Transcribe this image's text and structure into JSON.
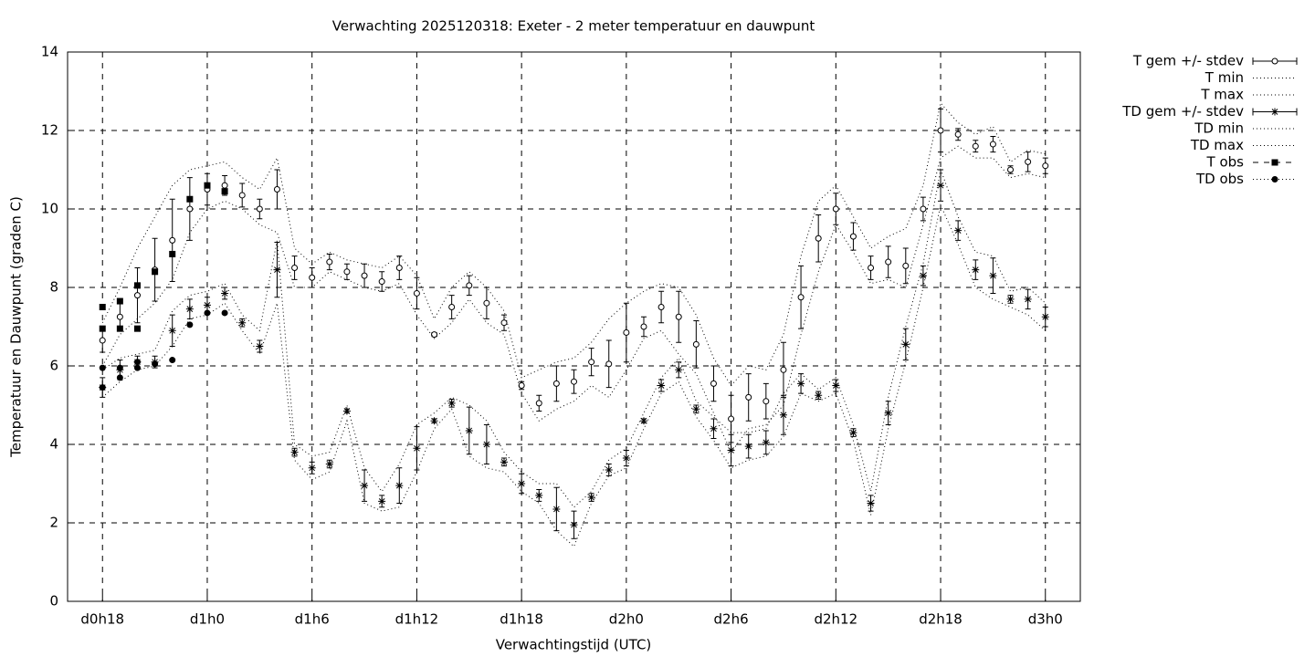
{
  "chart_data": {
    "type": "errorbar",
    "title": "Verwachting 2025120318: Exeter - 2 meter temperatuur en dauwpunt",
    "xlabel": "Verwachtingstijd (UTC)",
    "ylabel": "Temperatuur en Dauwpunt (graden C)",
    "xlim": [
      16,
      74
    ],
    "ylim": [
      0,
      14
    ],
    "xticks": [
      {
        "value": 18,
        "label": "d0h18"
      },
      {
        "value": 24,
        "label": "d1h0"
      },
      {
        "value": 30,
        "label": "d1h6"
      },
      {
        "value": 36,
        "label": "d1h12"
      },
      {
        "value": 42,
        "label": "d1h18"
      },
      {
        "value": 48,
        "label": "d2h0"
      },
      {
        "value": 54,
        "label": "d2h6"
      },
      {
        "value": 60,
        "label": "d2h12"
      },
      {
        "value": 66,
        "label": "d2h18"
      },
      {
        "value": 72,
        "label": "d3h0"
      }
    ],
    "yticks": [
      0,
      2,
      4,
      6,
      8,
      10,
      12,
      14
    ],
    "grid": true,
    "legend": "outside-right",
    "color": "#000000",
    "x": [
      18,
      19,
      20,
      21,
      22,
      23,
      24,
      25,
      26,
      27,
      28,
      29,
      30,
      31,
      32,
      33,
      34,
      35,
      36,
      37,
      38,
      39,
      40,
      41,
      42,
      43,
      44,
      45,
      46,
      47,
      48,
      49,
      50,
      51,
      52,
      53,
      54,
      55,
      56,
      57,
      58,
      59,
      60,
      61,
      62,
      63,
      64,
      65,
      66,
      67,
      68,
      69,
      70,
      71,
      72
    ],
    "series": [
      {
        "name": "T gem +/- stdev",
        "style": "errorbar",
        "marker": "circle",
        "values": [
          6.65,
          7.25,
          7.8,
          8.45,
          9.2,
          10.0,
          10.5,
          10.6,
          10.35,
          10.0,
          10.5,
          8.5,
          8.25,
          8.65,
          8.4,
          8.3,
          8.15,
          8.5,
          7.85,
          6.8,
          7.5,
          8.05,
          7.6,
          7.1,
          5.5,
          5.05,
          5.55,
          5.6,
          6.1,
          6.05,
          6.85,
          7.0,
          7.5,
          7.25,
          6.55,
          5.55,
          4.65,
          5.2,
          5.1,
          5.9,
          7.75,
          9.25,
          10.0,
          9.3,
          8.5,
          8.65,
          8.55,
          10.0,
          12.0,
          11.9,
          11.6,
          11.65,
          11.0,
          11.2,
          11.1
        ],
        "errors": [
          0.3,
          0.35,
          0.7,
          0.8,
          1.05,
          0.8,
          0.4,
          0.25,
          0.3,
          0.25,
          0.5,
          0.3,
          0.25,
          0.2,
          0.2,
          0.3,
          0.25,
          0.3,
          0.4,
          0.05,
          0.3,
          0.25,
          0.4,
          0.2,
          0.1,
          0.2,
          0.45,
          0.3,
          0.35,
          0.6,
          0.75,
          0.25,
          0.4,
          0.65,
          0.6,
          0.45,
          0.6,
          0.6,
          0.45,
          0.7,
          0.8,
          0.6,
          0.4,
          0.35,
          0.3,
          0.4,
          0.45,
          0.3,
          0.55,
          0.15,
          0.15,
          0.2,
          0.1,
          0.25,
          0.2
        ]
      },
      {
        "name": "T min",
        "style": "dotted",
        "values": [
          6.0,
          6.8,
          7.2,
          7.6,
          8.2,
          9.4,
          10.0,
          10.2,
          10.0,
          9.6,
          9.4,
          8.0,
          8.0,
          8.4,
          8.2,
          8.0,
          7.9,
          8.1,
          7.3,
          6.7,
          7.1,
          7.7,
          7.1,
          6.8,
          5.3,
          4.6,
          4.9,
          5.1,
          5.5,
          5.2,
          5.9,
          6.7,
          6.9,
          6.3,
          5.8,
          4.8,
          3.8,
          4.4,
          4.5,
          5.0,
          6.8,
          8.4,
          9.6,
          8.9,
          8.1,
          8.2,
          8.0,
          9.6,
          11.3,
          11.6,
          11.3,
          11.3,
          10.8,
          10.9,
          10.8
        ]
      },
      {
        "name": "T max",
        "style": "dotted",
        "values": [
          7.1,
          8.0,
          9.0,
          9.8,
          10.6,
          11.0,
          11.1,
          11.2,
          10.8,
          10.5,
          11.3,
          9.0,
          8.6,
          8.9,
          8.7,
          8.6,
          8.5,
          8.8,
          8.3,
          7.2,
          8.0,
          8.4,
          8.0,
          7.4,
          5.7,
          5.9,
          6.1,
          6.2,
          6.6,
          7.2,
          7.6,
          7.9,
          8.1,
          8.0,
          7.3,
          6.2,
          5.5,
          6.0,
          5.9,
          6.8,
          8.8,
          10.2,
          10.6,
          9.8,
          9.0,
          9.3,
          9.5,
          10.6,
          12.7,
          12.2,
          11.9,
          12.1,
          11.2,
          11.5,
          11.4
        ]
      },
      {
        "name": "TD gem +/- stdev",
        "style": "errorbar",
        "marker": "star",
        "values": [
          5.45,
          5.9,
          6.1,
          6.1,
          6.9,
          7.45,
          7.55,
          7.85,
          7.1,
          6.5,
          8.45,
          3.8,
          3.4,
          3.5,
          4.85,
          2.95,
          2.55,
          2.95,
          3.9,
          4.6,
          5.05,
          4.35,
          4.0,
          3.55,
          3.0,
          2.7,
          2.35,
          1.95,
          2.65,
          3.35,
          3.65,
          4.6,
          5.5,
          5.9,
          4.9,
          4.4,
          3.85,
          3.95,
          4.05,
          4.75,
          5.55,
          5.25,
          5.5,
          4.3,
          2.5,
          4.8,
          6.55,
          8.3,
          10.6,
          9.45,
          8.45,
          8.3,
          7.7,
          7.7,
          7.25
        ],
        "errors": [
          0.25,
          0.25,
          0.15,
          0.15,
          0.4,
          0.25,
          0.2,
          0.15,
          0.1,
          0.15,
          0.7,
          0.1,
          0.15,
          0.1,
          0.05,
          0.4,
          0.15,
          0.45,
          0.55,
          0.05,
          0.1,
          0.6,
          0.5,
          0.1,
          0.25,
          0.15,
          0.55,
          0.35,
          0.1,
          0.15,
          0.2,
          0.05,
          0.15,
          0.2,
          0.1,
          0.25,
          0.4,
          0.3,
          0.3,
          0.5,
          0.25,
          0.1,
          0.15,
          0.1,
          0.2,
          0.3,
          0.4,
          0.25,
          0.4,
          0.25,
          0.25,
          0.45,
          0.1,
          0.25,
          0.25
        ]
      },
      {
        "name": "TD min",
        "style": "dotted",
        "values": [
          5.2,
          5.6,
          5.9,
          6.0,
          6.5,
          7.2,
          7.3,
          7.6,
          6.9,
          6.3,
          7.6,
          3.6,
          3.1,
          3.3,
          4.6,
          2.5,
          2.3,
          2.4,
          3.3,
          4.4,
          4.9,
          3.7,
          3.4,
          3.3,
          2.8,
          2.5,
          1.8,
          1.4,
          2.5,
          3.2,
          3.4,
          4.4,
          5.3,
          5.6,
          4.7,
          4.1,
          3.4,
          3.6,
          3.7,
          4.2,
          5.3,
          5.1,
          5.3,
          4.1,
          2.2,
          4.4,
          6.1,
          8.0,
          10.1,
          9.1,
          8.0,
          7.7,
          7.5,
          7.3,
          6.9
        ]
      },
      {
        "name": "TD max",
        "style": "dotted",
        "values": [
          5.9,
          6.2,
          6.3,
          6.4,
          7.4,
          7.8,
          7.9,
          8.1,
          7.3,
          6.9,
          9.2,
          4.0,
          3.7,
          3.8,
          5.0,
          3.4,
          2.8,
          3.5,
          4.5,
          4.8,
          5.2,
          5.0,
          4.6,
          3.8,
          3.3,
          3.0,
          3.0,
          2.4,
          2.8,
          3.6,
          3.9,
          4.8,
          5.7,
          6.2,
          5.1,
          4.7,
          4.3,
          4.3,
          4.4,
          5.3,
          5.8,
          5.4,
          5.7,
          4.5,
          2.8,
          5.2,
          7.0,
          8.6,
          11.0,
          9.8,
          8.9,
          8.8,
          7.9,
          8.0,
          7.6
        ]
      },
      {
        "name": "T obs",
        "style": "points",
        "marker": "square",
        "x": [
          18,
          18,
          19,
          19,
          20,
          20,
          21,
          22,
          23,
          24,
          25
        ],
        "values": [
          7.5,
          6.95,
          7.65,
          6.95,
          8.05,
          6.95,
          8.4,
          8.85,
          10.25,
          10.6,
          10.45
        ]
      },
      {
        "name": "TD obs",
        "style": "points",
        "marker": "dot",
        "x": [
          18,
          18,
          19,
          19,
          20,
          20,
          21,
          22,
          23,
          24,
          25
        ],
        "values": [
          5.95,
          5.45,
          5.95,
          5.7,
          6.1,
          5.95,
          6.05,
          6.15,
          7.05,
          7.35,
          7.35
        ]
      }
    ]
  }
}
